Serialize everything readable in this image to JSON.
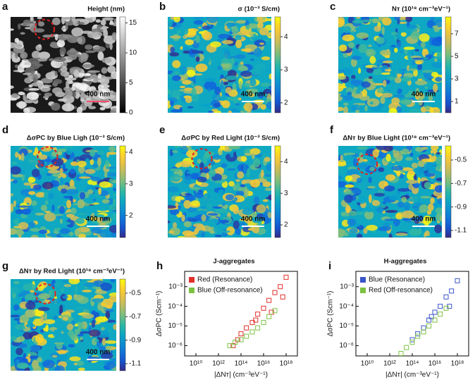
{
  "chart_data": [
    {
      "type": "map",
      "panel": "a",
      "title": "Height  (nm)",
      "colormap": "gray",
      "clim": [
        0,
        16
      ],
      "cticks": [
        0,
        5,
        10,
        15
      ],
      "scale_bar": "400 nm"
    },
    {
      "type": "map",
      "panel": "b",
      "title": "σ (10⁻³ S/cm)",
      "colormap": "parula",
      "clim": [
        1.7,
        4.6
      ],
      "cticks": [
        2,
        3,
        4
      ],
      "scale_bar": "400 nm"
    },
    {
      "type": "map",
      "panel": "c",
      "title": "Nᴛ (10¹⁸ cm⁻³eV⁻¹)",
      "colormap": "parula",
      "clim": [
        0,
        8.5
      ],
      "cticks": [
        1,
        3,
        5,
        7
      ],
      "scale_bar": "400 nm"
    },
    {
      "type": "map",
      "panel": "d",
      "title": "ΔσPC by Blue Ligh (10⁻³ S/cm)",
      "colormap": "parula",
      "clim": [
        1.3,
        4.2
      ],
      "cticks": [
        2,
        3,
        4
      ],
      "scale_bar": "400 nm"
    },
    {
      "type": "map",
      "panel": "e",
      "title": "ΔσPC by Red Light (10⁻³ S/cm)",
      "colormap": "parula",
      "clim": [
        1.6,
        4.5
      ],
      "cticks": [
        2,
        3,
        4
      ],
      "scale_bar": "400 nm"
    },
    {
      "type": "map",
      "panel": "f",
      "title": "ΔNᴛ by Blue Light (10¹⁸ cm⁻³eV⁻¹)",
      "colormap": "parula",
      "clim": [
        -1.16,
        -0.38
      ],
      "cticks": [
        -1.1,
        -0.9,
        -0.7,
        -0.5
      ],
      "scale_bar": "400 nm"
    },
    {
      "type": "map",
      "panel": "g",
      "title": "ΔNᴛ by Red Light (10¹⁸ cm⁻³eV⁻¹)",
      "colormap": "parula",
      "clim": [
        -1.16,
        -0.38
      ],
      "cticks": [
        -1.1,
        -0.9,
        -0.7,
        -0.5
      ],
      "scale_bar": "400 nm"
    },
    {
      "type": "scatter",
      "panel": "h",
      "title": "J-aggregates",
      "xlabel": "|ΔNᴛ|  (cm⁻³eV⁻¹)",
      "ylabel": "ΔσPC (Scm⁻¹)",
      "log": true,
      "legend": "upper left",
      "xlim": [
        1000000000.0,
        1e+19
      ],
      "ylim": [
        3e-07,
        0.006
      ],
      "xticks": [
        {
          "value": 10000000000.0,
          "label": "10¹⁰"
        },
        {
          "value": 1000000000000.0,
          "label": "10¹²"
        },
        {
          "value": 100000000000000.0,
          "label": "10¹⁴"
        },
        {
          "value": 1e+16,
          "label": "10¹⁶"
        },
        {
          "value": 1e+18,
          "label": "10¹⁸"
        }
      ],
      "yticks": [
        {
          "value": 1e-06,
          "label": "10⁻⁶"
        },
        {
          "value": 1e-05,
          "label": "10⁻⁵"
        },
        {
          "value": 0.0001,
          "label": "10⁻⁴"
        },
        {
          "value": 0.001,
          "label": "10⁻³"
        }
      ],
      "series": [
        {
          "name": "Red (Resonance)",
          "color": "#e0302a",
          "x": [
            20000000000000.0,
            50000000000000.0,
            100000000000000.0,
            300000000000000.0,
            1000000000000000.0,
            3000000000000000.0,
            1e+16,
            3e+16,
            1e+17,
            3e+17,
            1e+18,
            5e+17,
            2000000000000000.0,
            5e+16
          ],
          "values": [
            1e-06,
            2e-06,
            4e-06,
            8e-06,
            1.5e-05,
            4e-05,
            8e-05,
            0.0002,
            0.0005,
            0.001,
            0.003,
            0.0003,
            2e-05,
            5e-05
          ]
        },
        {
          "name": "Blue (Off-resonance)",
          "color": "#7cc242",
          "x": [
            10000000000000.0,
            30000000000000.0,
            100000000000000.0,
            300000000000000.0,
            1000000000000000.0,
            3000000000000000.0,
            1e+16,
            3e+16,
            1e+17
          ],
          "values": [
            1e-06,
            1.5e-06,
            2e-06,
            3e-06,
            5e-06,
            8e-06,
            1.5e-05,
            3e-05,
            6e-05
          ]
        }
      ]
    },
    {
      "type": "scatter",
      "panel": "i",
      "title": "H-aggregates",
      "xlabel": "|ΔNᴛ|  (cm⁻³eV⁻¹)",
      "ylabel": "ΔσPC (Scm⁻¹)",
      "log": true,
      "legend": "upper left",
      "xlim": [
        1000000000.0,
        1e+19
      ],
      "ylim": [
        3e-07,
        0.006
      ],
      "xticks": [
        {
          "value": 10000000000.0,
          "label": "10¹⁰"
        },
        {
          "value": 1000000000000.0,
          "label": "10¹²"
        },
        {
          "value": 100000000000000.0,
          "label": "10¹⁴"
        },
        {
          "value": 1e+16,
          "label": "10¹⁶"
        },
        {
          "value": 1e+18,
          "label": "10¹⁸"
        }
      ],
      "yticks": [
        {
          "value": 1e-06,
          "label": "10⁻⁶"
        },
        {
          "value": 1e-05,
          "label": "10⁻⁵"
        },
        {
          "value": 0.0001,
          "label": "10⁻⁴"
        },
        {
          "value": 0.001,
          "label": "10⁻³"
        }
      ],
      "series": [
        {
          "name": "Blue (Resonance)",
          "color": "#3a55c8",
          "x": [
            100000000000000.0,
            300000000000000.0,
            1000000000000000.0,
            3000000000000000.0,
            1e+16,
            3e+16,
            1e+17,
            3e+17,
            1e+18,
            5000000000000000.0,
            2e+17
          ],
          "values": [
            2e-06,
            4e-06,
            8e-06,
            2e-05,
            5e-05,
            0.0001,
            0.0003,
            0.0006,
            0.002,
            3e-05,
            0.0001
          ]
        },
        {
          "name": "Red (Off-resonance)",
          "color": "#7cc242",
          "x": [
            10000000000000.0,
            30000000000000.0,
            100000000000000.0,
            300000000000000.0,
            1000000000000000.0,
            3000000000000000.0,
            1e+16,
            3e+16,
            1e+17
          ],
          "values": [
            4e-07,
            8e-07,
            1.5e-06,
            3e-06,
            5e-06,
            1e-05,
            2e-05,
            4e-05,
            8e-05
          ]
        }
      ]
    }
  ]
}
